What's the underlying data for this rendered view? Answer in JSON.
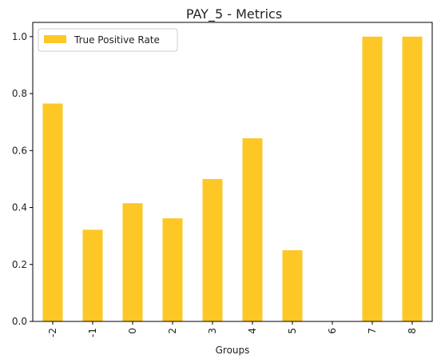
{
  "chart_data": {
    "type": "bar",
    "title": "PAY_5 - Metrics",
    "xlabel": "Groups",
    "ylabel": "",
    "categories": [
      "-2",
      "-1",
      "0",
      "2",
      "3",
      "4",
      "5",
      "6",
      "7",
      "8"
    ],
    "series": [
      {
        "name": "True Positive Rate",
        "values": [
          0.765,
          0.322,
          0.415,
          0.362,
          0.5,
          0.643,
          0.25,
          0.0,
          1.0,
          1.0
        ],
        "color": "#fdc726"
      }
    ],
    "ylim": [
      0,
      1.05
    ],
    "yticks": [
      "0.0",
      "0.2",
      "0.4",
      "0.6",
      "0.8",
      "1.0"
    ],
    "ytick_values": [
      0,
      0.2,
      0.4,
      0.6,
      0.8,
      1.0
    ],
    "grid": false,
    "legend_position": "top-left"
  }
}
